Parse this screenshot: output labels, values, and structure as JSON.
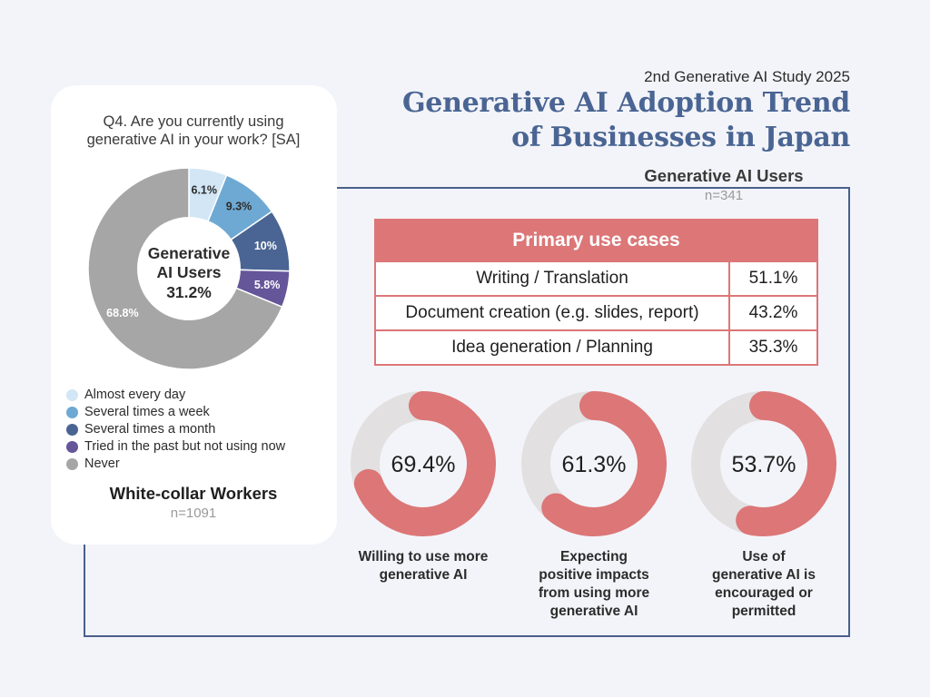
{
  "header": {
    "study": "2nd Generative AI Study 2025",
    "title_line1": "Generative AI Adoption Trend",
    "title_line2": "of Businesses in Japan"
  },
  "left_panel": {
    "question_line1": "Q4. Are you currently using",
    "question_line2": "generative AI in your work? [SA]",
    "center_line1": "Generative",
    "center_line2": "AI Users",
    "center_value": "31.2%",
    "group_label": "White-collar Workers",
    "group_n": "n=1091"
  },
  "users_section": {
    "label": "Generative AI Users",
    "n": "n=341"
  },
  "use_cases": {
    "header": "Primary use cases",
    "rows": [
      {
        "label": "Writing / Translation",
        "value": "51.1%"
      },
      {
        "label": "Document creation (e.g. slides, report)",
        "value": "43.2%"
      },
      {
        "label": "Idea generation / Planning",
        "value": "35.3%"
      }
    ]
  },
  "colors": {
    "accent": "#dc7677",
    "ring_track": "#e2e0e0",
    "title": "#4a6593",
    "frame": "#4a5f8c"
  },
  "chart_data": [
    {
      "type": "pie",
      "title": "Q4. Are you currently using generative AI in your work? [SA]",
      "slices": [
        {
          "label": "Almost every day",
          "value": 6.1,
          "display": "6.1%",
          "color": "#d2e6f5",
          "text_color": "#2c2c2c"
        },
        {
          "label": "Several times a week",
          "value": 9.3,
          "display": "9.3%",
          "color": "#6ea9d3",
          "text_color": "#2c2c2c"
        },
        {
          "label": "Several times a month",
          "value": 10.0,
          "display": "10%",
          "color": "#4a6593",
          "text_color": "#ffffff"
        },
        {
          "label": "Tried in the past but not using now",
          "value": 5.8,
          "display": "5.8%",
          "color": "#65569a",
          "text_color": "#ffffff"
        },
        {
          "label": "Never",
          "value": 68.8,
          "display": "68.8%",
          "color": "#a6a6a6",
          "text_color": "#ffffff"
        }
      ],
      "legend_position": "bottom"
    },
    {
      "type": "pie",
      "rings": [
        {
          "value": 69.4,
          "display": "69.4%",
          "caption": [
            "Willing to use more",
            "generative AI"
          ]
        },
        {
          "value": 61.3,
          "display": "61.3%",
          "caption": [
            "Expecting",
            "positive impacts",
            "from using more",
            "generative AI"
          ]
        },
        {
          "value": 53.7,
          "display": "53.7%",
          "caption": [
            "Use of",
            "generative AI is",
            "encouraged or",
            "permitted"
          ]
        }
      ]
    }
  ]
}
